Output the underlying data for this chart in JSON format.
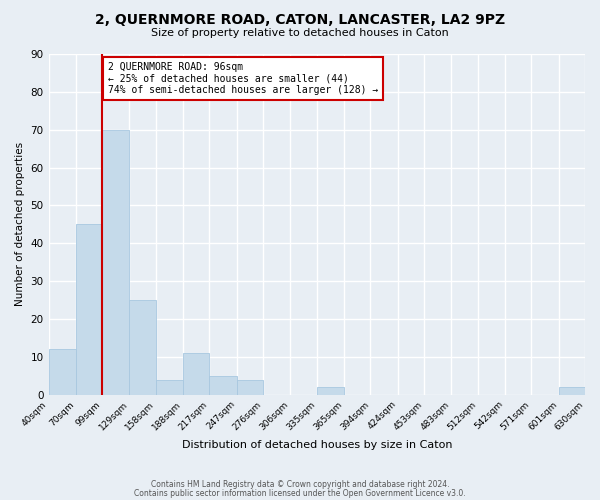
{
  "title": "2, QUERNMORE ROAD, CATON, LANCASTER, LA2 9PZ",
  "subtitle": "Size of property relative to detached houses in Caton",
  "xlabel": "Distribution of detached houses by size in Caton",
  "ylabel": "Number of detached properties",
  "footnote1": "Contains HM Land Registry data © Crown copyright and database right 2024.",
  "footnote2": "Contains public sector information licensed under the Open Government Licence v3.0.",
  "bins": [
    40,
    70,
    99,
    129,
    158,
    188,
    217,
    247,
    276,
    306,
    335,
    365,
    394,
    424,
    453,
    483,
    512,
    542,
    571,
    601,
    630
  ],
  "bin_labels": [
    "40sqm",
    "70sqm",
    "99sqm",
    "129sqm",
    "158sqm",
    "188sqm",
    "217sqm",
    "247sqm",
    "276sqm",
    "306sqm",
    "335sqm",
    "365sqm",
    "394sqm",
    "424sqm",
    "453sqm",
    "483sqm",
    "512sqm",
    "542sqm",
    "571sqm",
    "601sqm",
    "630sqm"
  ],
  "counts": [
    12,
    45,
    70,
    25,
    4,
    11,
    5,
    4,
    0,
    0,
    2,
    0,
    0,
    0,
    0,
    0,
    0,
    0,
    0,
    2,
    0
  ],
  "bar_color": "#c5daea",
  "bar_edge_color": "#a8c8e0",
  "property_line_x": 99,
  "property_line_color": "#cc0000",
  "annotation_text_line1": "2 QUERNMORE ROAD: 96sqm",
  "annotation_text_line2": "← 25% of detached houses are smaller (44)",
  "annotation_text_line3": "74% of semi-detached houses are larger (128) →",
  "annotation_box_color": "#cc0000",
  "ylim": [
    0,
    90
  ],
  "yticks": [
    0,
    10,
    20,
    30,
    40,
    50,
    60,
    70,
    80,
    90
  ],
  "bg_color": "#e8eef4",
  "plot_bg_color": "#e8eef4",
  "grid_color": "#ffffff"
}
